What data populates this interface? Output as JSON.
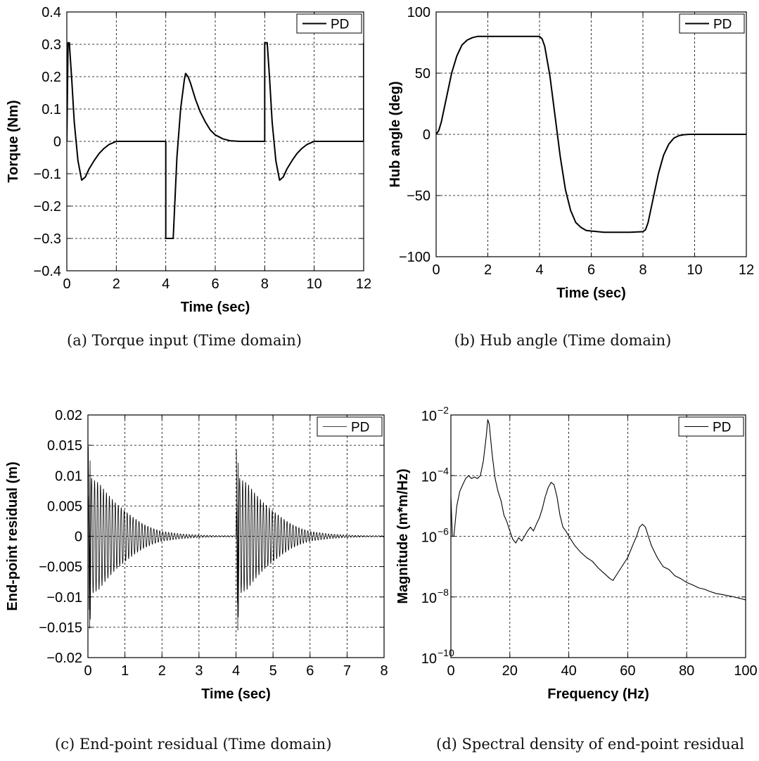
{
  "panels": [
    {
      "caption": "(a) Torque input (Time domain)",
      "chart_data": {
        "type": "line",
        "xlabel": "Time (sec)",
        "ylabel": "Torque (Nm)",
        "xlim": [
          0,
          12
        ],
        "ylim": [
          -0.4,
          0.4
        ],
        "xscale": "linear",
        "yscale": "linear",
        "grid": true,
        "legend_position": "top-right",
        "xticks": [
          0,
          2,
          4,
          6,
          8,
          10,
          12
        ],
        "xticklabels": [
          "0",
          "2",
          "4",
          "6",
          "8",
          "10",
          "12"
        ],
        "yticks": [
          -0.4,
          -0.3,
          -0.2,
          -0.1,
          0,
          0.1,
          0.2,
          0.3,
          0.4
        ],
        "yticklabels": [
          "−0.4",
          "−0.3",
          "−0.2",
          "−0.1",
          "0",
          "0.1",
          "0.2",
          "0.3",
          "0.4"
        ],
        "series": [
          {
            "name": "PD",
            "x": [
              0,
              0.05,
              0.1,
              0.2,
              0.3,
              0.45,
              0.6,
              0.75,
              0.9,
              1.1,
              1.3,
              1.5,
              1.7,
              2.0,
              2.5,
              3.0,
              3.5,
              4.0,
              4.0,
              4.05,
              4.3,
              4.3,
              4.45,
              4.6,
              4.75,
              4.8,
              4.9,
              5.0,
              5.2,
              5.4,
              5.6,
              5.8,
              6.0,
              6.3,
              6.6,
              7.0,
              7.5,
              8.0,
              8.0,
              8.05,
              8.1,
              8.2,
              8.3,
              8.45,
              8.6,
              8.75,
              8.9,
              9.1,
              9.3,
              9.5,
              9.7,
              10.0,
              10.5,
              11.0,
              11.5,
              12.0,
              12.0
            ],
            "y": [
              0,
              0.305,
              0.305,
              0.19,
              0.06,
              -0.06,
              -0.12,
              -0.11,
              -0.085,
              -0.06,
              -0.038,
              -0.022,
              -0.01,
              0,
              0,
              0,
              0,
              0,
              -0.3,
              -0.3,
              -0.3,
              -0.3,
              -0.05,
              0.1,
              0.19,
              0.21,
              0.2,
              0.18,
              0.13,
              0.09,
              0.06,
              0.035,
              0.02,
              0.008,
              0.002,
              0,
              0,
              0,
              0.305,
              0.305,
              0.305,
              0.19,
              0.06,
              -0.06,
              -0.12,
              -0.11,
              -0.085,
              -0.06,
              -0.038,
              -0.022,
              -0.01,
              0,
              0,
              0,
              0,
              0,
              0.305
            ]
          }
        ]
      }
    },
    {
      "caption": "(b) Hub angle (Time domain)",
      "chart_data": {
        "type": "line",
        "xlabel": "Time (sec)",
        "ylabel": "Hub angle (deg)",
        "xlim": [
          0,
          12
        ],
        "ylim": [
          -100,
          100
        ],
        "xscale": "linear",
        "yscale": "linear",
        "grid": true,
        "legend_position": "top-right",
        "xticks": [
          0,
          2,
          4,
          6,
          8,
          10,
          12
        ],
        "xticklabels": [
          "0",
          "2",
          "4",
          "6",
          "8",
          "10",
          "12"
        ],
        "yticks": [
          -100,
          -50,
          0,
          50,
          100
        ],
        "yticklabels": [
          "−100",
          "−50",
          "0",
          "50",
          "100"
        ],
        "series": [
          {
            "name": "PD",
            "x": [
              0,
              0.1,
              0.2,
              0.4,
              0.6,
              0.8,
              1.0,
              1.2,
              1.4,
              1.6,
              1.8,
              2.0,
              2.5,
              3.0,
              3.5,
              4.0,
              4.1,
              4.2,
              4.4,
              4.6,
              4.8,
              5.0,
              5.2,
              5.4,
              5.6,
              5.8,
              6.0,
              6.5,
              7.0,
              7.5,
              8.0,
              8.1,
              8.2,
              8.4,
              8.6,
              8.8,
              9.0,
              9.2,
              9.4,
              9.6,
              9.8,
              10.0,
              10.5,
              11.0,
              12.0
            ],
            "y": [
              0,
              3,
              10,
              30,
              50,
              64,
              73,
              77,
              79,
              80,
              80,
              80,
              80,
              80,
              80,
              80,
              78,
              72,
              48,
              15,
              -18,
              -45,
              -62,
              -72,
              -76,
              -78.5,
              -79,
              -80,
              -80,
              -80,
              -79.5,
              -78,
              -72,
              -52,
              -32,
              -17,
              -8,
              -3,
              -1,
              -0.3,
              0,
              0,
              0,
              0,
              0
            ]
          }
        ]
      }
    },
    {
      "caption": "(c) End-point residual (Time domain)",
      "chart_data": {
        "type": "line",
        "xlabel": "Time (sec)",
        "ylabel": "End-point residual (m)",
        "xlim": [
          0,
          8
        ],
        "ylim": [
          -0.02,
          0.02
        ],
        "xscale": "linear",
        "yscale": "linear",
        "grid": true,
        "legend_position": "top-right",
        "xticks": [
          0,
          1,
          2,
          3,
          4,
          5,
          6,
          7,
          8
        ],
        "xticklabels": [
          "0",
          "1",
          "2",
          "3",
          "4",
          "5",
          "6",
          "7",
          "8"
        ],
        "yticks": [
          -0.02,
          -0.015,
          -0.01,
          -0.005,
          0,
          0.005,
          0.01,
          0.015,
          0.02
        ],
        "yticklabels": [
          "−0.02",
          "−0.015",
          "−0.01",
          "−0.005",
          "0",
          "0.005",
          "0.01",
          "0.015",
          "0.02"
        ],
        "oscillation": {
          "frequency_hz": 12.5,
          "bursts": [
            {
              "start": 0.0,
              "end": 4.0,
              "peak": 0.0148,
              "min": -0.0152
            },
            {
              "start": 4.0,
              "end": 8.0,
              "peak": 0.0143,
              "min": -0.0155
            }
          ]
        },
        "series": [
          {
            "name": "PD",
            "envelope_x": [
              0,
              0.05,
              0.1,
              0.3,
              0.5,
              0.75,
              1.0,
              1.25,
              1.5,
              1.75,
              2.0,
              2.5,
              3.0,
              3.5,
              4.0,
              4.05,
              4.1,
              4.3,
              4.5,
              4.75,
              5.0,
              5.25,
              5.5,
              5.75,
              6.0,
              6.5,
              7.0,
              7.5,
              8.0
            ],
            "envelope_y": [
              0.0035,
              0.015,
              0.0095,
              0.0088,
              0.0072,
              0.0055,
              0.0042,
              0.003,
              0.002,
              0.0013,
              0.0008,
              0.0004,
              0.0002,
              0.0001,
              0.0001,
              0.0145,
              0.0095,
              0.0088,
              0.0072,
              0.0055,
              0.0042,
              0.003,
              0.002,
              0.0013,
              0.0008,
              0.0004,
              0.0002,
              0.0001,
              0.0001
            ]
          }
        ]
      }
    },
    {
      "caption": "(d) Spectral density of end-point residual",
      "chart_data": {
        "type": "line",
        "xlabel": "Frequency (Hz)",
        "ylabel": "Magnitude (m*m/Hz)",
        "xlim": [
          0,
          100
        ],
        "ylim": [
          1e-10,
          0.01
        ],
        "xscale": "linear",
        "yscale": "log",
        "grid": true,
        "legend_position": "top-right",
        "xticks": [
          0,
          20,
          40,
          60,
          80,
          100
        ],
        "xticklabels": [
          "0",
          "20",
          "40",
          "60",
          "80",
          "100"
        ],
        "yticks": [
          1e-10,
          1e-08,
          1e-06,
          0.0001,
          0.01
        ],
        "ytick_exponents": [
          "−10",
          "−8",
          "−6",
          "−4",
          "−2"
        ],
        "ytick_base": "10",
        "series": [
          {
            "name": "PD",
            "x": [
              0,
              0.5,
              1,
              2,
              3,
              4,
              5,
              6,
              7,
              8,
              9,
              10,
              11,
              12,
              12.5,
              13,
              14,
              15,
              16,
              17,
              18,
              19,
              20,
              21,
              22,
              23,
              24,
              25,
              26,
              27,
              28,
              29,
              30,
              31,
              32,
              33,
              34,
              35,
              36,
              37,
              38,
              39,
              40,
              42,
              44,
              46,
              48,
              50,
              52,
              54,
              55,
              56,
              58,
              60,
              62,
              63,
              64,
              65,
              66,
              67,
              68,
              70,
              72,
              74,
              76,
              78,
              80,
              82,
              84,
              86,
              88,
              90,
              92,
              94,
              96,
              98,
              100
            ],
            "y": [
              2e-05,
              1e-06,
              1e-06,
              1e-05,
              3e-05,
              5e-05,
              8e-05,
              0.0001,
              8e-05,
              9e-05,
              8e-05,
              0.0001,
              0.0003,
              0.002,
              0.007,
              0.005,
              0.0005,
              8e-05,
              3e-05,
              1.5e-05,
              5e-06,
              3e-06,
              1.5e-06,
              8e-07,
              6e-07,
              9e-07,
              7e-07,
              1e-06,
              1.5e-06,
              2e-06,
              1.5e-06,
              2.5e-06,
              4e-06,
              8e-06,
              2e-05,
              4e-05,
              6e-05,
              5e-05,
              2e-05,
              5e-06,
              2e-06,
              1.5e-06,
              1e-06,
              5e-07,
              3e-07,
              2e-07,
              1.5e-07,
              9e-08,
              6e-08,
              4e-08,
              3.5e-08,
              5e-08,
              1e-07,
              2e-07,
              6e-07,
              1e-06,
              2e-06,
              2.5e-06,
              2e-06,
              1e-06,
              5e-07,
              2e-07,
              1e-07,
              8e-08,
              5e-08,
              4e-08,
              3e-08,
              2.5e-08,
              2e-08,
              1.8e-08,
              1.5e-08,
              1.3e-08,
              1.2e-08,
              1.1e-08,
              1e-08,
              9e-09,
              8e-09
            ]
          }
        ]
      }
    }
  ]
}
